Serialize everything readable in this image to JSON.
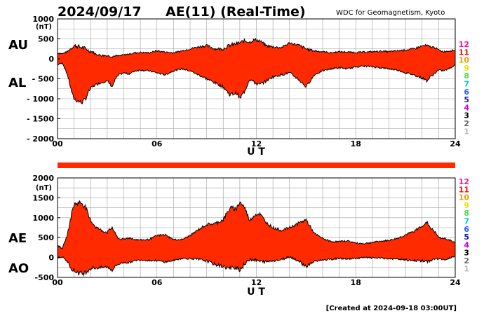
{
  "header": {
    "date": "2024/09/17",
    "title": "AE(11) (Real-Time)",
    "source": "WDC for Geomagnetism, Kyoto"
  },
  "footer": {
    "created": "[Created at 2024-09-18 03:00UT]"
  },
  "station_key": {
    "labels": [
      "12",
      "11",
      "10",
      "9",
      "8",
      "7",
      "6",
      "5",
      "4",
      "3",
      "2",
      "1"
    ],
    "colors": [
      "#ff1493",
      "#ee1111",
      "#f0a000",
      "#e6e600",
      "#50dd50",
      "#00cccc",
      "#2266ff",
      "#1a1aa0",
      "#cc00cc",
      "#000000",
      "#666666",
      "#bbbbbb"
    ]
  },
  "colors": {
    "fill": "#ff2a00",
    "outline": "#000000",
    "grid": "#a0a0a0",
    "status_bar": "#ff2a00"
  },
  "chart_data": [
    {
      "type": "area",
      "panel": "AU/AL",
      "series_labels": [
        "AU",
        "AL"
      ],
      "unit": "(nT)",
      "xlabel": "U T",
      "x_ticks": [
        "00",
        "06",
        "12",
        "18",
        "24"
      ],
      "xlim": [
        0,
        24
      ],
      "ylim": [
        -2000,
        1000
      ],
      "y_ticks": [
        "1000",
        "500",
        "0",
        "- 500",
        "- 1000",
        "- 1500",
        "- 2000"
      ],
      "y_tick_values": [
        1000,
        500,
        0,
        -500,
        -1000,
        -1500,
        -2000
      ],
      "grid": true,
      "x": [
        0,
        0.3,
        0.6,
        0.9,
        1.0,
        1.2,
        1.45,
        1.7,
        1.9,
        2.1,
        2.3,
        2.6,
        3.0,
        3.3,
        3.5,
        3.7,
        4.0,
        4.3,
        4.7,
        5.0,
        5.5,
        6.0,
        6.5,
        7.0,
        7.5,
        8.0,
        8.5,
        9.0,
        9.5,
        10.0,
        10.4,
        10.8,
        11.0,
        11.3,
        11.6,
        11.9,
        12.2,
        12.6,
        13.0,
        13.5,
        14.0,
        14.5,
        15.0,
        15.5,
        16.0,
        16.5,
        17.0,
        17.5,
        18.0,
        18.5,
        19.0,
        19.5,
        20.0,
        20.5,
        21.0,
        21.5,
        22.0,
        22.3,
        22.5,
        22.8,
        23.0,
        23.3,
        23.6,
        24
      ],
      "au": [
        150,
        130,
        180,
        300,
        330,
        320,
        280,
        260,
        200,
        180,
        120,
        90,
        80,
        60,
        80,
        70,
        100,
        120,
        150,
        160,
        150,
        200,
        170,
        150,
        200,
        250,
        300,
        330,
        250,
        250,
        340,
        380,
        400,
        450,
        420,
        480,
        450,
        330,
        300,
        280,
        400,
        350,
        250,
        200,
        180,
        150,
        180,
        170,
        160,
        170,
        180,
        190,
        180,
        200,
        220,
        250,
        320,
        330,
        300,
        280,
        220,
        180,
        200,
        220
      ],
      "al": [
        -150,
        -100,
        -400,
        -900,
        -1000,
        -1050,
        -1100,
        -1000,
        -800,
        -700,
        -650,
        -600,
        -550,
        -700,
        -500,
        -400,
        -350,
        -380,
        -300,
        -280,
        -300,
        -350,
        -400,
        -300,
        -250,
        -300,
        -400,
        -500,
        -600,
        -700,
        -900,
        -850,
        -1000,
        -800,
        -500,
        -600,
        -650,
        -550,
        -450,
        -400,
        -350,
        -500,
        -700,
        -400,
        -300,
        -250,
        -220,
        -250,
        -200,
        -180,
        -200,
        -220,
        -250,
        -280,
        -350,
        -400,
        -480,
        -550,
        -450,
        -350,
        -280,
        -300,
        -250,
        -150
      ]
    },
    {
      "type": "area",
      "panel": "AE/AO",
      "series_labels": [
        "AE",
        "AO"
      ],
      "unit": "(nT)",
      "xlabel": "U T",
      "x_ticks": [
        "00",
        "06",
        "12",
        "18",
        "24"
      ],
      "xlim": [
        0,
        24
      ],
      "ylim": [
        -500,
        2000
      ],
      "y_ticks": [
        "2000",
        "1500",
        "1000",
        "500",
        "0",
        "-500"
      ],
      "y_tick_values": [
        2000,
        1500,
        1000,
        500,
        0,
        -500
      ],
      "grid": true,
      "x": [
        0,
        0.3,
        0.6,
        0.9,
        1.0,
        1.2,
        1.45,
        1.7,
        1.9,
        2.1,
        2.3,
        2.6,
        3.0,
        3.3,
        3.5,
        3.7,
        4.0,
        4.3,
        4.7,
        5.0,
        5.5,
        6.0,
        6.5,
        7.0,
        7.5,
        8.0,
        8.5,
        9.0,
        9.5,
        10.0,
        10.4,
        10.8,
        11.0,
        11.3,
        11.6,
        11.9,
        12.2,
        12.6,
        13.0,
        13.5,
        14.0,
        14.5,
        15.0,
        15.5,
        16.0,
        16.5,
        17.0,
        17.5,
        18.0,
        18.5,
        19.0,
        19.5,
        20.0,
        20.5,
        21.0,
        21.5,
        22.0,
        22.3,
        22.5,
        22.8,
        23.0,
        23.3,
        23.6,
        24
      ],
      "ae": [
        300,
        230,
        580,
        1200,
        1330,
        1370,
        1380,
        1260,
        1000,
        880,
        770,
        690,
        630,
        760,
        580,
        470,
        450,
        500,
        450,
        440,
        450,
        550,
        570,
        450,
        450,
        550,
        700,
        830,
        850,
        950,
        1240,
        1230,
        1400,
        1250,
        920,
        1080,
        1100,
        880,
        750,
        680,
        750,
        850,
        950,
        600,
        480,
        400,
        400,
        420,
        360,
        350,
        380,
        410,
        430,
        480,
        570,
        650,
        800,
        880,
        750,
        630,
        500,
        480,
        450,
        370
      ],
      "ao": [
        0,
        15,
        -110,
        -300,
        -335,
        -365,
        -410,
        -370,
        -300,
        -260,
        -265,
        -255,
        -235,
        -320,
        -210,
        -165,
        -125,
        -130,
        -75,
        -60,
        -75,
        -75,
        -115,
        -75,
        -25,
        -25,
        -50,
        -85,
        -175,
        -225,
        -280,
        -235,
        -300,
        -175,
        -40,
        -60,
        -100,
        -110,
        -75,
        -60,
        25,
        -75,
        -225,
        -100,
        -60,
        -50,
        -20,
        -40,
        -20,
        -5,
        -10,
        -15,
        -35,
        -40,
        -65,
        -75,
        -80,
        -110,
        -75,
        -35,
        -30,
        -60,
        -25,
        35
      ]
    }
  ]
}
